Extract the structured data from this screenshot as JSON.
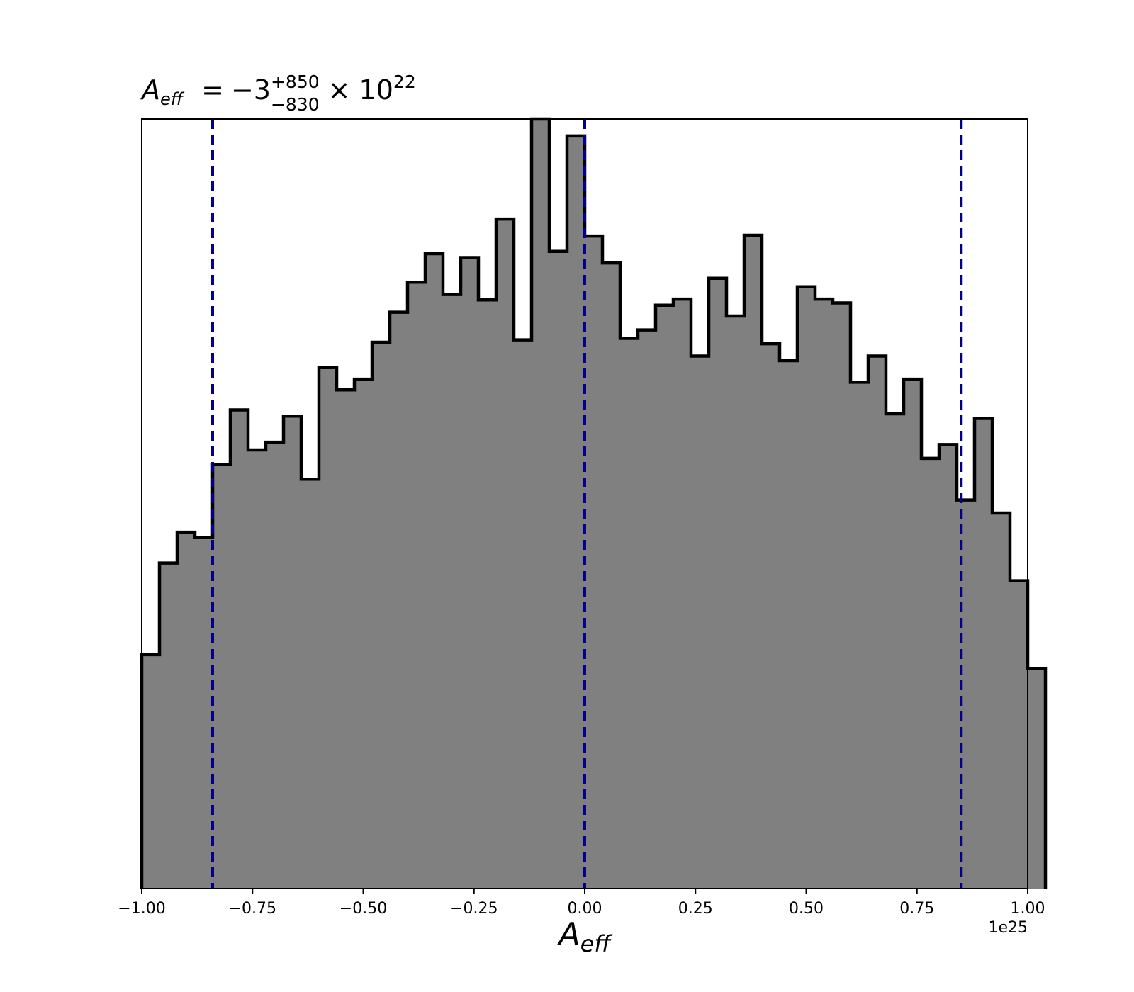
{
  "chart_data": {
    "type": "histogram",
    "title": {
      "symbol": "A",
      "symbol_sub": "eff",
      "equals": "=",
      "value": "−3",
      "upper": "+850",
      "lower": "−830",
      "times": "× 10",
      "exponent": "22"
    },
    "xlabel": {
      "symbol": "A",
      "sub": "eff"
    },
    "x_offset_label": "1e25",
    "xlim": [
      -1.0,
      1.0
    ],
    "ylim": [
      0,
      1
    ],
    "y_ticks_shown": false,
    "x_ticks": [
      -1.0,
      -0.75,
      -0.5,
      -0.25,
      0.0,
      0.25,
      0.5,
      0.75,
      1.0
    ],
    "x_tick_labels": [
      "−1.00",
      "−0.75",
      "−0.50",
      "−0.25",
      "0.00",
      "0.25",
      "0.50",
      "0.75",
      "1.00"
    ],
    "bins": {
      "start": -1.0,
      "width": 0.04,
      "heights": [
        0.304,
        0.423,
        0.463,
        0.456,
        0.551,
        0.622,
        0.57,
        0.58,
        0.614,
        0.532,
        0.677,
        0.648,
        0.662,
        0.71,
        0.749,
        0.788,
        0.825,
        0.772,
        0.82,
        0.765,
        0.87,
        0.713,
        1.0,
        0.828,
        0.978,
        0.848,
        0.813,
        0.715,
        0.726,
        0.758,
        0.766,
        0.692,
        0.793,
        0.744,
        0.849,
        0.708,
        0.686,
        0.782,
        0.766,
        0.761,
        0.658,
        0.692,
        0.617,
        0.662,
        0.559,
        0.577,
        0.505,
        0.611,
        0.488,
        0.4,
        0.286
      ]
    },
    "vlines": [
      -0.84,
      0.0,
      0.85
    ],
    "colors": {
      "fill": "#808080",
      "edge": "#000000",
      "vline": "#00008b"
    },
    "grid": false
  }
}
